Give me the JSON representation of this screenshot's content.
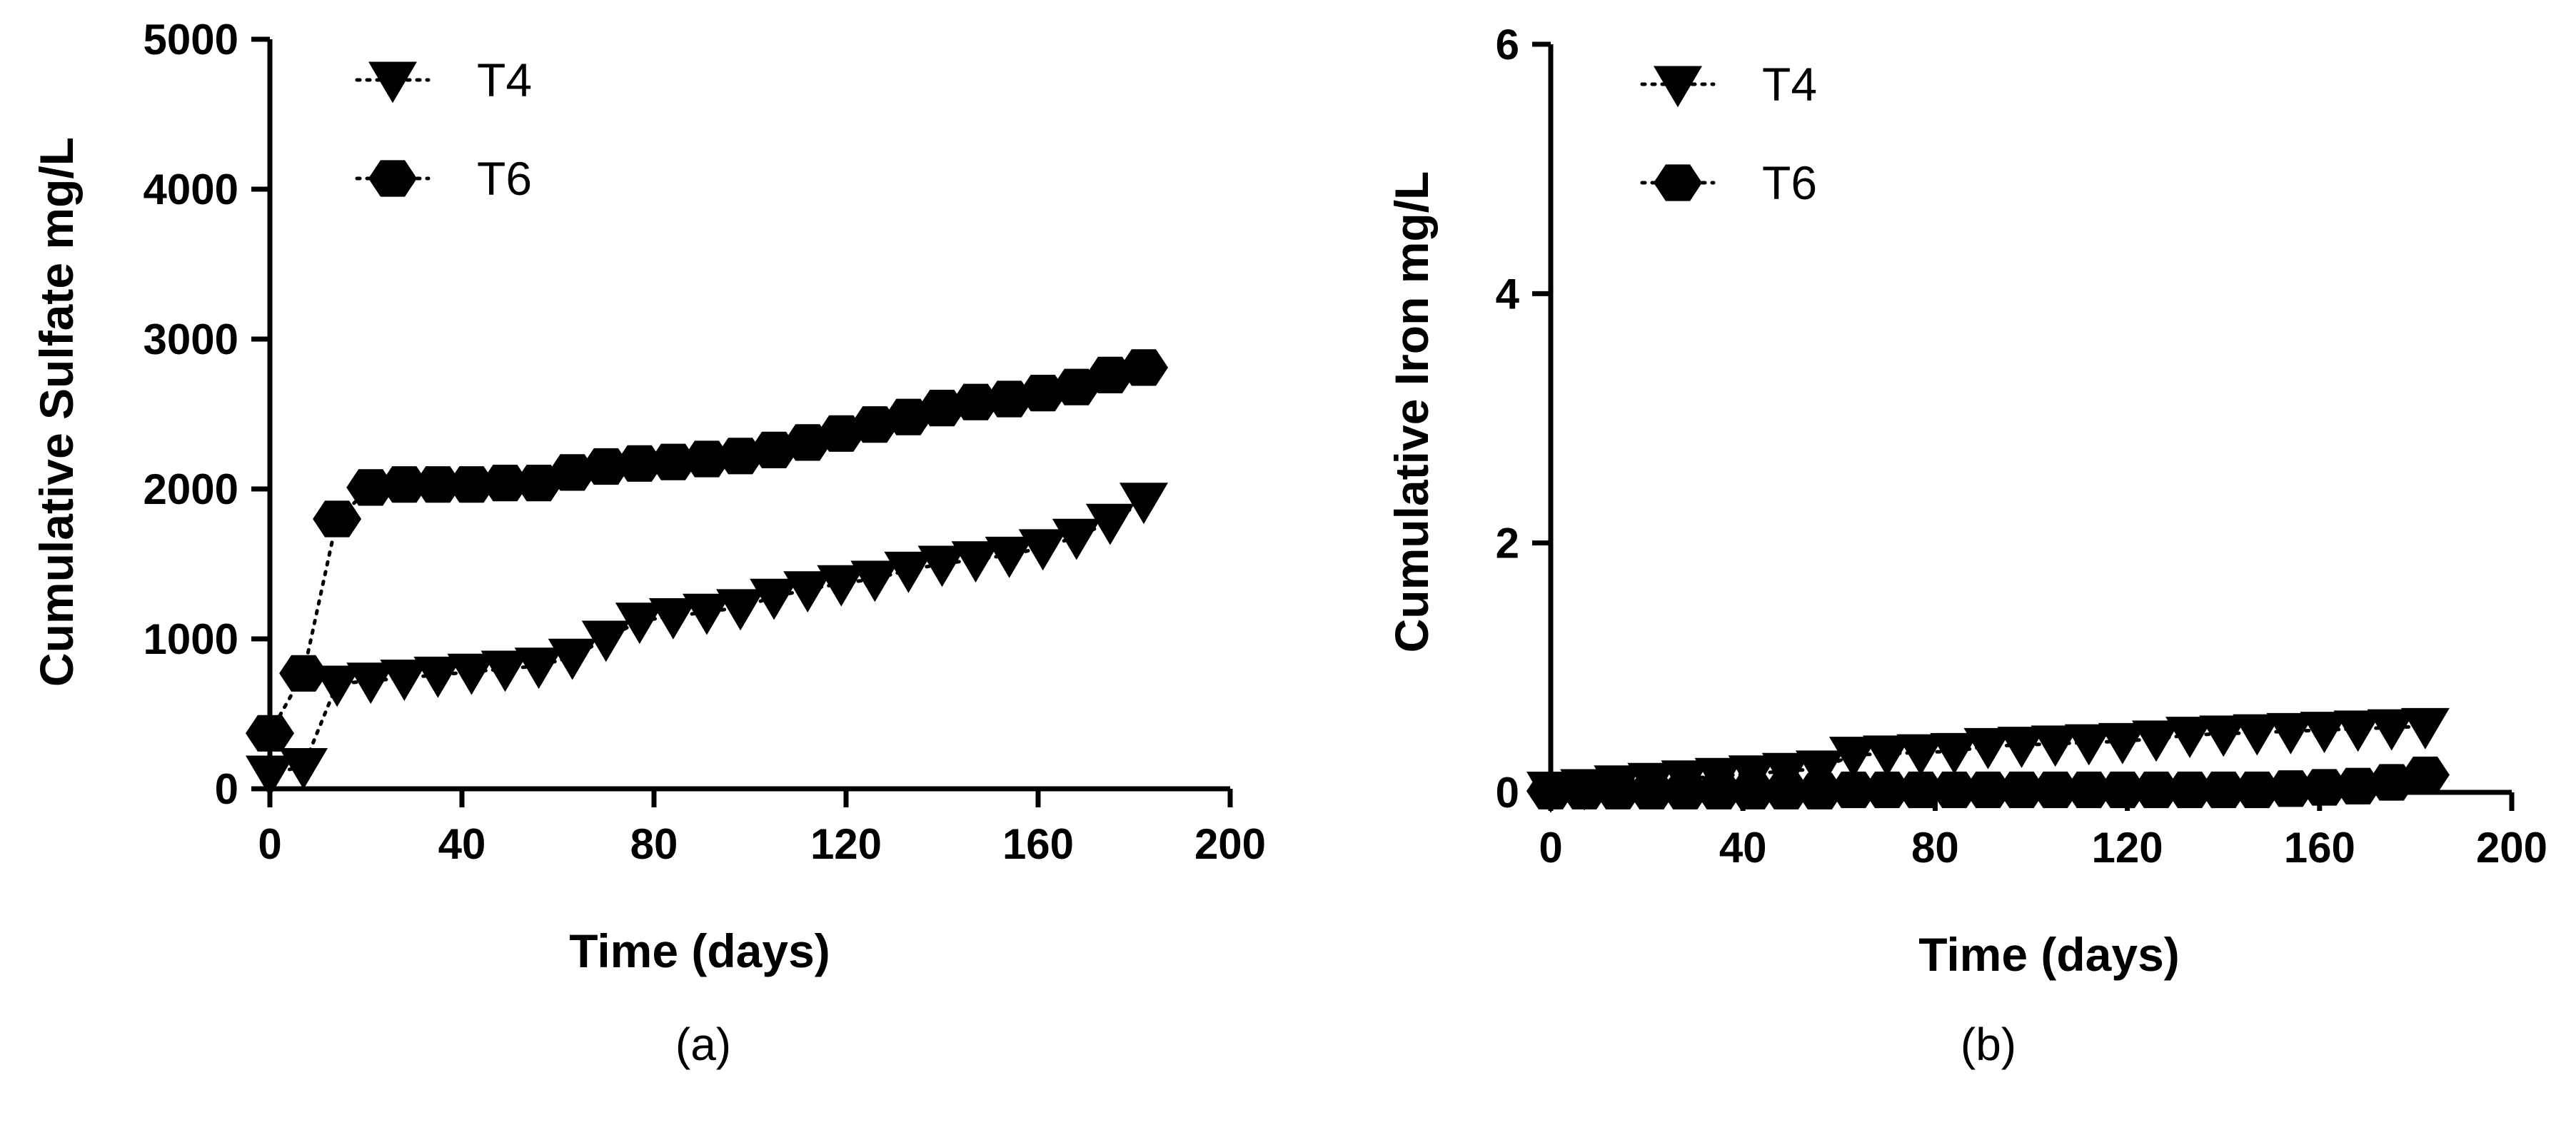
{
  "chart_data": [
    {
      "id": "a",
      "type": "scatter",
      "caption": "(a)",
      "title": "",
      "xlabel": "Time (days)",
      "ylabel": "Cumulative Sulfate mg/L",
      "xlim": [
        0,
        200
      ],
      "ylim": [
        0,
        5000
      ],
      "xticks": [
        "0",
        "40",
        "80",
        "120",
        "160",
        "200"
      ],
      "yticks": [
        "0",
        "1000",
        "2000",
        "3000",
        "4000",
        "5000"
      ],
      "xtick_values": [
        0,
        40,
        80,
        120,
        160,
        200
      ],
      "ytick_values": [
        0,
        1000,
        2000,
        3000,
        4000,
        5000
      ],
      "legend_position": "top-left",
      "series": [
        {
          "name": "T4",
          "marker": "triangle-down",
          "x": [
            0,
            7,
            14,
            21,
            28,
            35,
            42,
            49,
            56,
            63,
            70,
            77,
            84,
            91,
            98,
            105,
            112,
            119,
            126,
            133,
            140,
            147,
            154,
            161,
            168,
            175,
            182
          ],
          "y": [
            100,
            150,
            700,
            720,
            740,
            760,
            780,
            800,
            820,
            880,
            1000,
            1120,
            1150,
            1180,
            1210,
            1280,
            1330,
            1370,
            1400,
            1460,
            1500,
            1530,
            1560,
            1610,
            1680,
            1780,
            1920
          ]
        },
        {
          "name": "T6",
          "marker": "hexagon",
          "x": [
            0,
            7,
            14,
            21,
            28,
            35,
            42,
            49,
            56,
            63,
            70,
            77,
            84,
            91,
            98,
            105,
            112,
            119,
            126,
            133,
            140,
            147,
            154,
            161,
            168,
            175,
            182
          ],
          "y": [
            370,
            770,
            1800,
            2010,
            2030,
            2030,
            2030,
            2040,
            2040,
            2110,
            2150,
            2170,
            2180,
            2200,
            2220,
            2260,
            2310,
            2370,
            2430,
            2480,
            2540,
            2580,
            2600,
            2640,
            2680,
            2760,
            2810
          ]
        }
      ]
    },
    {
      "id": "b",
      "type": "scatter",
      "caption": "(b)",
      "title": "",
      "xlabel": "Time (days)",
      "ylabel": "Cumulative Iron mg/L",
      "xlim": [
        0,
        200
      ],
      "ylim": [
        0,
        6
      ],
      "xticks": [
        "0",
        "40",
        "80",
        "120",
        "160",
        "200"
      ],
      "yticks": [
        "0",
        "2",
        "4",
        "6"
      ],
      "xtick_values": [
        0,
        40,
        80,
        120,
        160,
        200
      ],
      "ytick_values": [
        0,
        2,
        4,
        6
      ],
      "legend_position": "top-left",
      "series": [
        {
          "name": "T4",
          "marker": "triangle-down",
          "x": [
            0,
            7,
            14,
            21,
            28,
            35,
            42,
            49,
            56,
            63,
            70,
            77,
            84,
            91,
            98,
            105,
            112,
            119,
            126,
            133,
            140,
            147,
            154,
            161,
            168,
            175,
            182
          ],
          "y": [
            0.02,
            0.04,
            0.07,
            0.09,
            0.11,
            0.13,
            0.15,
            0.17,
            0.19,
            0.3,
            0.31,
            0.32,
            0.33,
            0.37,
            0.38,
            0.39,
            0.4,
            0.41,
            0.43,
            0.46,
            0.47,
            0.48,
            0.49,
            0.5,
            0.51,
            0.52,
            0.53
          ]
        },
        {
          "name": "T6",
          "marker": "hexagon",
          "x": [
            0,
            7,
            14,
            21,
            28,
            35,
            42,
            49,
            56,
            63,
            70,
            77,
            84,
            91,
            98,
            105,
            112,
            119,
            126,
            133,
            140,
            147,
            154,
            161,
            168,
            175,
            182
          ],
          "y": [
            0.01,
            0.01,
            0.01,
            0.01,
            0.01,
            0.01,
            0.01,
            0.01,
            0.01,
            0.02,
            0.02,
            0.02,
            0.02,
            0.02,
            0.02,
            0.02,
            0.02,
            0.02,
            0.02,
            0.02,
            0.02,
            0.02,
            0.03,
            0.04,
            0.05,
            0.08,
            0.14
          ]
        }
      ]
    }
  ]
}
